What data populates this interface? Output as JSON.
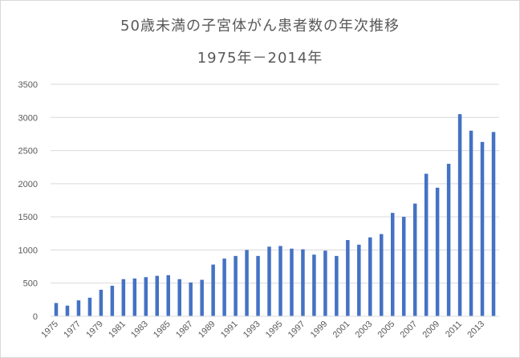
{
  "chart_data": {
    "type": "bar",
    "title_line1": "50歳未満の子宮体がん患者数の年次推移",
    "title_line2": "1975年－2014年",
    "categories": [
      "1975",
      "1976",
      "1977",
      "1978",
      "1979",
      "1980",
      "1981",
      "1982",
      "1983",
      "1984",
      "1985",
      "1986",
      "1987",
      "1988",
      "1989",
      "1990",
      "1991",
      "1992",
      "1993",
      "1994",
      "1995",
      "1996",
      "1997",
      "1998",
      "1999",
      "2000",
      "2001",
      "2002",
      "2003",
      "2004",
      "2005",
      "2006",
      "2007",
      "2008",
      "2009",
      "2010",
      "2011",
      "2012",
      "2013",
      "2014"
    ],
    "x_tick_labels": [
      "1975",
      "1977",
      "1979",
      "1981",
      "1983",
      "1985",
      "1987",
      "1989",
      "1991",
      "1993",
      "1995",
      "1997",
      "1999",
      "2001",
      "2003",
      "2005",
      "2007",
      "2009",
      "2011",
      "2013"
    ],
    "values": [
      200,
      160,
      240,
      280,
      400,
      460,
      560,
      570,
      590,
      610,
      620,
      560,
      510,
      550,
      780,
      870,
      910,
      1000,
      910,
      1050,
      1060,
      1020,
      1010,
      930,
      990,
      910,
      1150,
      1080,
      1190,
      1240,
      1560,
      1500,
      1700,
      2150,
      1940,
      2300,
      3050,
      2800,
      2630,
      2780
    ],
    "y_ticks": [
      0,
      500,
      1000,
      1500,
      2000,
      2500,
      3000,
      3500
    ],
    "ylim": [
      0,
      3500
    ],
    "xlabel": "",
    "ylabel": "",
    "grid": true,
    "legend": "none",
    "bar_color": "#4472c4",
    "grid_color": "#d9d9d9",
    "text_color": "#595959"
  }
}
